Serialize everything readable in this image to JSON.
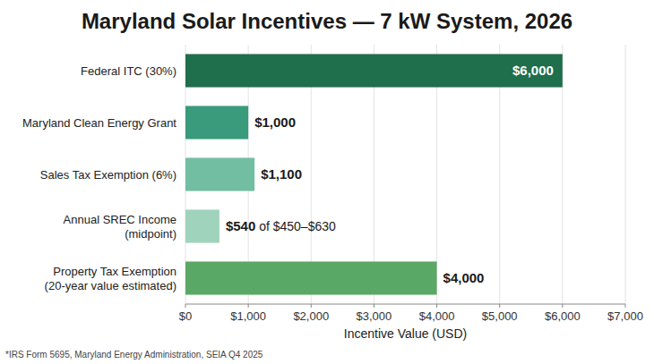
{
  "chart_data": {
    "type": "bar",
    "orientation": "horizontal",
    "title": "Maryland Solar Incentives — 7 kW System, 2026",
    "categories": [
      "Federal ITC (30%)",
      "Maryland Clean Energy Grant",
      "Sales Tax Exemption (6%)",
      "Annual SREC Income (midpoint)",
      "Property Tax Exemption (20-year value estimated)"
    ],
    "values": [
      6000,
      1000,
      1100,
      540,
      4000
    ],
    "value_labels": [
      "$6,000",
      "$1,000",
      "$1,100",
      "$540 of $450–$630",
      "$4,000"
    ],
    "data_labels": true,
    "colors": [
      "#1f6e4c",
      "#3a9a7c",
      "#72bea2",
      "#9fd3bb",
      "#5aa865"
    ],
    "xlabel": "Incentive Value (USD)",
    "xlim": [
      0,
      7000
    ],
    "xticks": [
      {
        "value": 0,
        "label": "$0"
      },
      {
        "value": 1000,
        "label": "$1,000"
      },
      {
        "value": 2000,
        "label": "$2,000"
      },
      {
        "value": 3000,
        "label": "$3,000"
      },
      {
        "value": 4000,
        "label": "$4,000"
      },
      {
        "value": 5000,
        "label": "$5,000"
      },
      {
        "value": 6000,
        "label": "$6,000"
      },
      {
        "value": 7000,
        "label": "$7,000"
      }
    ],
    "grid": true,
    "footnote": "*IRS Form 5695, Maryland Energy Administration, SEIA Q4 2025"
  }
}
